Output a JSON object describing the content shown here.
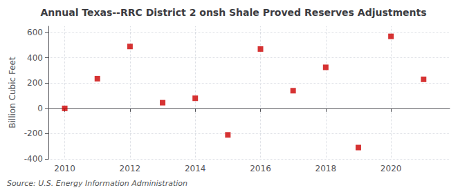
{
  "chart_data": {
    "type": "scatter",
    "title": "Annual Texas--RRC District 2 onsh Shale Proved Reserves Adjustments",
    "ylabel": "Billion Cubic Feet",
    "annotations": [
      "Source: U.S. Energy Information Administration"
    ],
    "x": [
      2010,
      2011,
      2012,
      2013,
      2014,
      2015,
      2016,
      2017,
      2018,
      2019,
      2020,
      2021
    ],
    "values": [
      0,
      235,
      490,
      45,
      80,
      -210,
      470,
      140,
      325,
      -310,
      570,
      230
    ],
    "color": "#cc0000",
    "marker": "square",
    "xlim": [
      2009.5,
      2021.8
    ],
    "xticks": [
      2010,
      2012,
      2014,
      2016,
      2018,
      2020
    ],
    "ylim": [
      -400,
      650
    ],
    "yticks": [
      -400,
      -200,
      0,
      200,
      400,
      600
    ],
    "grid": true
  }
}
